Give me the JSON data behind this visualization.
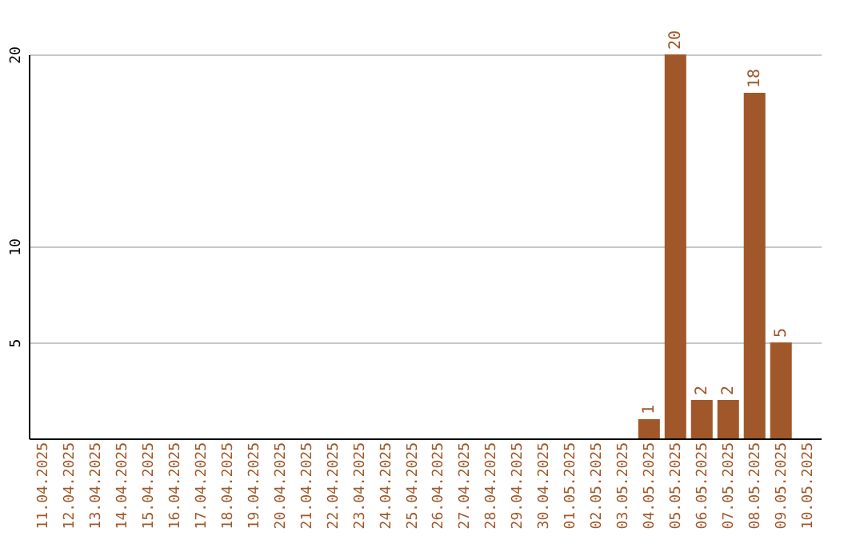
{
  "chart_data": {
    "type": "bar",
    "categories": [
      "11.04.2025",
      "12.04.2025",
      "13.04.2025",
      "14.04.2025",
      "15.04.2025",
      "16.04.2025",
      "17.04.2025",
      "18.04.2025",
      "19.04.2025",
      "20.04.2025",
      "21.04.2025",
      "22.04.2025",
      "23.04.2025",
      "24.04.2025",
      "25.04.2025",
      "26.04.2025",
      "27.04.2025",
      "28.04.2025",
      "29.04.2025",
      "30.04.2025",
      "01.05.2025",
      "02.05.2025",
      "03.05.2025",
      "04.05.2025",
      "05.05.2025",
      "06.05.2025",
      "07.05.2025",
      "08.05.2025",
      "09.05.2025",
      "10.05.2025"
    ],
    "values": [
      0,
      0,
      0,
      0,
      0,
      0,
      0,
      0,
      0,
      0,
      0,
      0,
      0,
      0,
      0,
      0,
      0,
      0,
      0,
      0,
      0,
      0,
      0,
      1,
      20,
      2,
      2,
      18,
      5,
      0
    ],
    "value_labels": [
      null,
      null,
      null,
      null,
      null,
      null,
      null,
      null,
      null,
      null,
      null,
      null,
      null,
      null,
      null,
      null,
      null,
      null,
      null,
      null,
      null,
      null,
      null,
      "1",
      "20",
      "2",
      "2",
      "18",
      "5",
      null
    ],
    "color": "#a0582a",
    "ylim": [
      0,
      20
    ],
    "yticks": [
      5,
      10,
      20
    ],
    "grid": "y"
  }
}
